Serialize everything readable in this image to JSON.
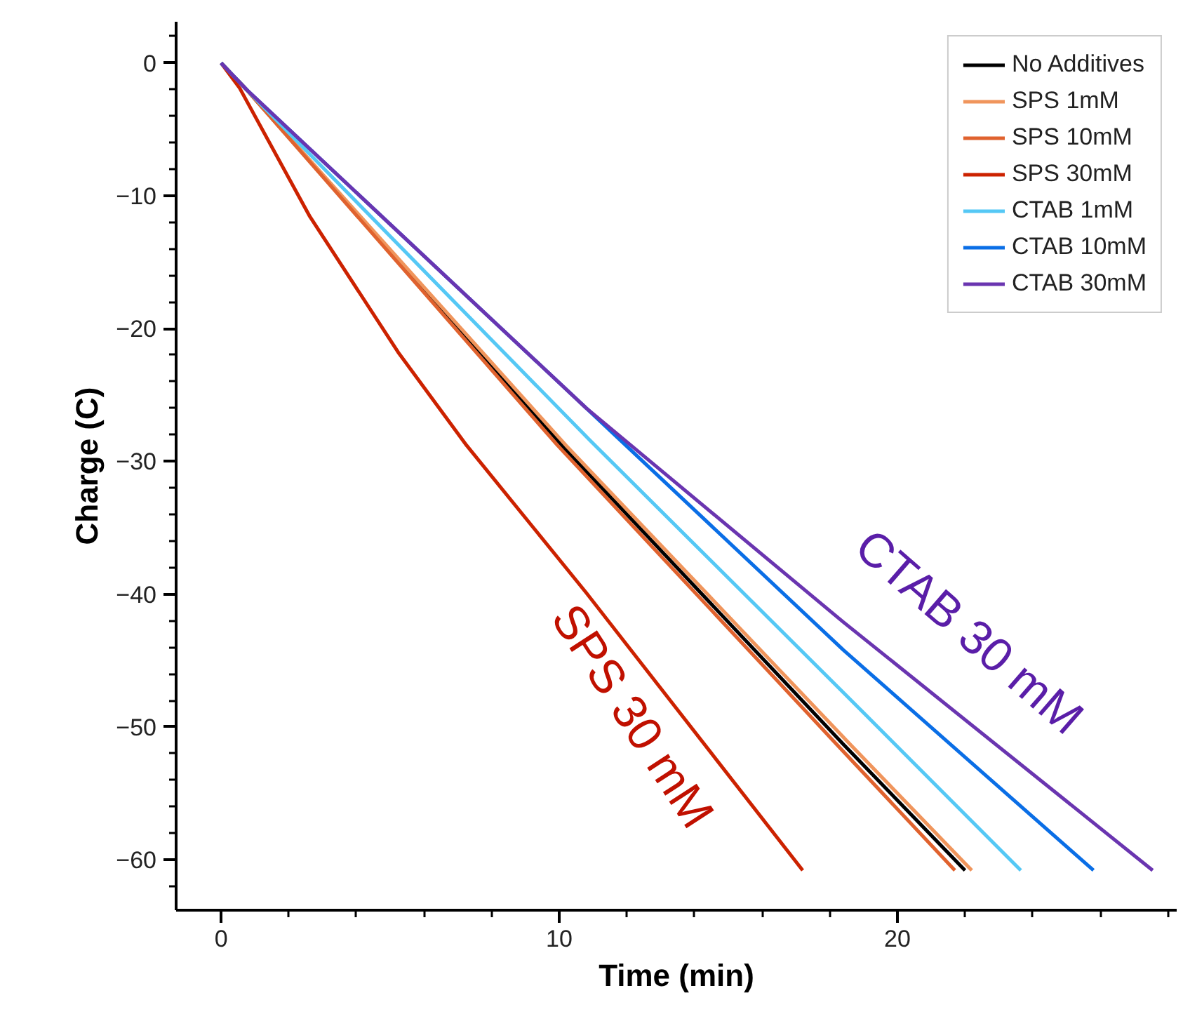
{
  "chart_data": {
    "type": "line",
    "xlabel": "Time (min)",
    "ylabel": "Charge (C)",
    "xlim": [
      -1.33,
      28.26
    ],
    "ylim": [
      -63.8,
      3.1
    ],
    "xticks": [
      0,
      10,
      20
    ],
    "yticks": [
      0,
      {
        "value": -10,
        "label": "−10"
      },
      {
        "value": -20,
        "label": "−20"
      },
      {
        "value": -30,
        "label": "−30"
      },
      {
        "value": -40,
        "label": "−40"
      },
      {
        "value": -50,
        "label": "−50"
      },
      {
        "value": -60,
        "label": "−60"
      }
    ],
    "grid": false,
    "legend": "top right",
    "line_style": "solid",
    "marker": "none",
    "series": [
      {
        "name": "No Additives",
        "color": "#000000",
        "x": [
          0,
          0.75,
          10.08,
          18.4,
          22.0
        ],
        "values": [
          0,
          -2,
          -28.8,
          -51.3,
          -60.8
        ]
      },
      {
        "name": "SPS 1mM",
        "color": "#f0955c",
        "x": [
          0,
          0.75,
          10.2,
          18.6,
          22.2
        ],
        "values": [
          0,
          -2,
          -28.8,
          -51.3,
          -60.8
        ]
      },
      {
        "name": "SPS 10mM",
        "color": "#e0622e",
        "x": [
          0,
          0.75,
          9.95,
          18.2,
          21.7
        ],
        "values": [
          0,
          -2,
          -28.8,
          -51.3,
          -60.8
        ]
      },
      {
        "name": "SPS 30mM",
        "color": "#cc2200",
        "x": [
          0,
          0.55,
          2.61,
          5.24,
          7.26,
          10.8,
          17.2
        ],
        "values": [
          0,
          -1.9,
          -11.5,
          -21.8,
          -28.8,
          -39.9,
          -60.8
        ]
      },
      {
        "name": "CTAB 1mM",
        "color": "#55c8f5",
        "x": [
          0,
          0.75,
          10.9,
          18.4,
          23.65
        ],
        "values": [
          0,
          -2,
          -28.4,
          -47.4,
          -60.8
        ]
      },
      {
        "name": "CTAB 10mM",
        "color": "#0a6ee6",
        "x": [
          0,
          0.75,
          10.8,
          18.4,
          25.8
        ],
        "values": [
          0,
          -2,
          -26.0,
          -44.2,
          -60.8
        ]
      },
      {
        "name": "CTAB 30mM",
        "color": "#6a35b0",
        "x": [
          0,
          0.75,
          10.8,
          18.4,
          27.55
        ],
        "values": [
          0,
          -2,
          -26.0,
          -42.1,
          -60.8
        ]
      }
    ],
    "annotations": [
      "SPS 30 mM",
      "CTAB 30 mM"
    ]
  }
}
